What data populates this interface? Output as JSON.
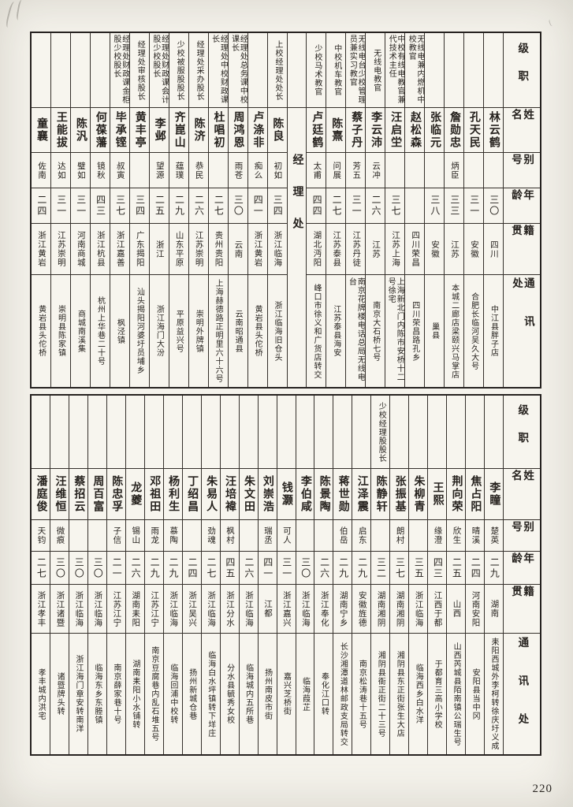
{
  "page": {
    "number": "220"
  },
  "labels": {
    "rank": "级职",
    "name": "姓名",
    "alias": "别号",
    "age": "年龄",
    "native": "籍贯",
    "address": "通讯处"
  },
  "tables": [
    {
      "section": "top",
      "columns": [
        {
          "rank": "",
          "name": "林云鹤",
          "alias": "",
          "age": "三〇",
          "native": "四川",
          "address": "中江县胖子店"
        },
        {
          "rank": "",
          "name": "孔天民",
          "alias": "",
          "age": "三一",
          "native": "安徽",
          "address": "合肥长临河吴久大号"
        },
        {
          "rank": "",
          "name": "詹勋忠",
          "alias": "炳臣",
          "age": "三三",
          "native": "江苏",
          "address": "本城二廊店梁颐兴马掌店"
        },
        {
          "rank": "",
          "name": "张临元",
          "alias": "",
          "age": "三八",
          "native": "安徽",
          "address": "巢县"
        },
        {
          "rank": "无线电兼内燃机中校教官",
          "name": "赵松森",
          "alias": "",
          "age": "",
          "native": "四川荣昌",
          "address": "四川荣昌路孔乡"
        },
        {
          "rank": "中校有线电教官兼代技术主任",
          "name": "汪启坣",
          "alias": "",
          "age": "三七",
          "native": "江苏上海",
          "address": "上海新北门内陈市安桥十二号徐宅"
        },
        {
          "rank": "无线电教官",
          "name": "李云沛",
          "alias": "云冲",
          "age": "二六",
          "native": "江苏",
          "address": "南京大石桥七号"
        },
        {
          "rank": "无线电台少校管理员兼实习教官",
          "name": "蔡子丹",
          "alias": "芳五",
          "age": "三一",
          "native": "江苏丹徒",
          "address": "南京花牌楼电话总局无线电台"
        },
        {
          "rank": "中校机车教官",
          "name": "陈熹",
          "alias": "问展",
          "age": "二七",
          "native": "江苏泰县",
          "address": "江苏泰县海安"
        },
        {
          "rank": "少校马术教官",
          "name": "卢廷鹤",
          "alias": "太甫",
          "age": "四四",
          "native": "湖北沔阳",
          "address": "峰口市徐义和广货店转交"
        },
        {
          "department": "经理处"
        },
        {
          "rank": "上校经理处处长",
          "name": "陈良",
          "alias": "初如",
          "age": "三四",
          "native": "浙江临海",
          "address": "浙江临海旧仓头"
        },
        {
          "rank": "",
          "name": "卢涤非",
          "alias": "痴么",
          "age": "四一",
          "native": "浙江黄岩",
          "address": "黄岩县头佗桥"
        },
        {
          "rank": "经理处总务课中校课长",
          "name": "周鸿恩",
          "alias": "雨苍",
          "age": "三〇",
          "native": "云南",
          "address": "云南昭通县"
        },
        {
          "rank": "经理处中校财政课长",
          "name": "杜唱初",
          "alias": "",
          "age": "二七",
          "native": "贵州贵阳",
          "address": "上海赫德路正明里六十六号"
        },
        {
          "rank": "经理处采办股长",
          "name": "陈济",
          "alias": "恭民",
          "age": "二六",
          "native": "江苏崇明",
          "address": "崇明外牌镇"
        },
        {
          "rank": "少校被服股股长",
          "name": "齐崑山",
          "alias": "蕴璞",
          "age": "二九",
          "native": "山东平原",
          "address": "平原益兴号"
        },
        {
          "rank": "经理处财政课会计股少校股长",
          "name": "李邺",
          "alias": "望源",
          "age": "二五",
          "native": "浙江",
          "address": "浙江海门大汾"
        },
        {
          "rank": "经理处审核股长",
          "name": "黄丰亭",
          "alias": "",
          "age": "三四",
          "native": "广东揭阳",
          "address": "汕头揭阳河婆圩员埔乡"
        },
        {
          "rank": "经理处财政课金柜股少校股长",
          "name": "毕承铿",
          "alias": "叔寅",
          "age": "三七",
          "native": "浙江嘉善",
          "address": "枫泾镇"
        },
        {
          "rank": "",
          "name": "何葆藩",
          "alias": "镜秋",
          "age": "四三",
          "native": "浙江杭县",
          "address": "杭州上华巷二十号"
        },
        {
          "rank": "",
          "name": "陈汎",
          "alias": "璧如",
          "age": "三一",
          "native": "河南商城",
          "address": "商城南溪集"
        },
        {
          "rank": "",
          "name": "王能拔",
          "alias": "达如",
          "age": "三一",
          "native": "江苏崇明",
          "address": "崇明县陈家镇"
        },
        {
          "rank": "",
          "name": "童襄",
          "alias": "佐南",
          "age": "二四",
          "native": "浙江黄岩",
          "address": "黄岩县头佗桥"
        }
      ]
    },
    {
      "section": "bottom",
      "columns": [
        {
          "rank": "",
          "name": "李瞳",
          "alias": "楚英",
          "age": "二九",
          "native": "湖南",
          "address": "耒阳西城外李柯转徐庆圩义成"
        },
        {
          "rank": "",
          "name": "焦占阳",
          "alias": "晴溪",
          "age": "二四",
          "native": "河南安阳",
          "address": "安阳县当中冈"
        },
        {
          "rank": "",
          "name": "荆向荣",
          "alias": "欣生",
          "age": "二五",
          "native": "山西",
          "address": "山西芮城县陌南镇公瑞生号"
        },
        {
          "rank": "",
          "name": "王熙",
          "alias": "缘澄",
          "age": "四三",
          "native": "江西于都",
          "address": "于都育三高小学校"
        },
        {
          "rank": "",
          "name": "朱柳青",
          "alias": "",
          "age": "三五",
          "native": "浙江临海",
          "address": "临海西乡白水洋"
        },
        {
          "rank": "",
          "name": "张振基",
          "alias": "朗村",
          "age": "三七",
          "native": "湖南湘阴",
          "address": "湘阴县东正街张生大店"
        },
        {
          "rank": "少校经理股股长",
          "name": "陈静轩",
          "alias": "",
          "age": "三二",
          "native": "湖南湘阴",
          "address": "湘阴县衙正街二十三号"
        },
        {
          "rank": "",
          "name": "江泽震",
          "alias": "启东",
          "age": "二九",
          "native": "安徽旌德",
          "address": "南京松涛巷十五号"
        },
        {
          "rank": "",
          "name": "蒋世勋",
          "alias": "伯岳",
          "age": "二九",
          "native": "湖南宁乡",
          "address": "长沙湘潭道林邮政支局转交"
        },
        {
          "rank": "",
          "name": "陈景陶",
          "alias": "",
          "age": "二六",
          "native": "浙江奉化",
          "address": "奉化江口转"
        },
        {
          "rank": "",
          "name": "李伯咸",
          "alias": "",
          "age": "三〇",
          "native": "浙江临海",
          "address": "临海葭芷"
        },
        {
          "rank": "",
          "name": "钱灏",
          "alias": "可人",
          "age": "三一",
          "native": "浙江嘉兴",
          "address": "嘉兴芝桥街"
        },
        {
          "rank": "",
          "name": "刘崇浩",
          "alias": "瑞丞",
          "age": "四一",
          "native": "江都",
          "address": "扬州南皮市街"
        },
        {
          "rank": "",
          "name": "朱文田",
          "alias": "",
          "age": "二六",
          "native": "浙江临海",
          "address": "临海城内五所巷"
        },
        {
          "rank": "",
          "name": "汪培褘",
          "alias": "枫村",
          "age": "四五",
          "native": "浙江分水",
          "address": "分水县毓秀女校"
        },
        {
          "rank": "",
          "name": "朱易人",
          "alias": "劲魂",
          "age": "二七",
          "native": "浙江临海",
          "address": "临海白水坪镇转下垟庄"
        },
        {
          "rank": "",
          "name": "丁绍昌",
          "alias": "",
          "age": "二四",
          "native": "浙江吴兴",
          "address": "扬州新城仓巷"
        },
        {
          "rank": "",
          "name": "杨利生",
          "alias": "慕陶",
          "age": "二九",
          "native": "浙江临海",
          "address": "临海回浦中校转"
        },
        {
          "rank": "",
          "name": "邓祖田",
          "alias": "雨龙",
          "age": "二九",
          "native": "江苏江宁",
          "address": "南京豆腐巷内乱石堆五号"
        },
        {
          "rank": "",
          "name": "龙夔",
          "alias": "锡山",
          "age": "二六",
          "native": "湖南耒阳",
          "address": "湖南耒阳小水铺转"
        },
        {
          "rank": "",
          "name": "陈忠孚",
          "alias": "子信",
          "age": "二一",
          "native": "江苏江宁",
          "address": "南京薛家巷十号"
        },
        {
          "rank": "",
          "name": "周百富",
          "alias": "",
          "age": "三〇",
          "native": "浙江临海",
          "address": "临海东乡东塍镇"
        },
        {
          "rank": "",
          "name": "蔡招云",
          "alias": "",
          "age": "三〇",
          "native": "浙江临海",
          "address": "浙江海门章安转南洋"
        },
        {
          "rank": "",
          "name": "汪维恒",
          "alias": "微痕",
          "age": "三〇",
          "native": "浙江诸暨",
          "address": "诸暨牌头转"
        },
        {
          "rank": "",
          "name": "潘庭俊",
          "alias": "天钧",
          "age": "二七",
          "native": "浙江孝丰",
          "address": "孝丰城内洪宅"
        }
      ]
    }
  ]
}
